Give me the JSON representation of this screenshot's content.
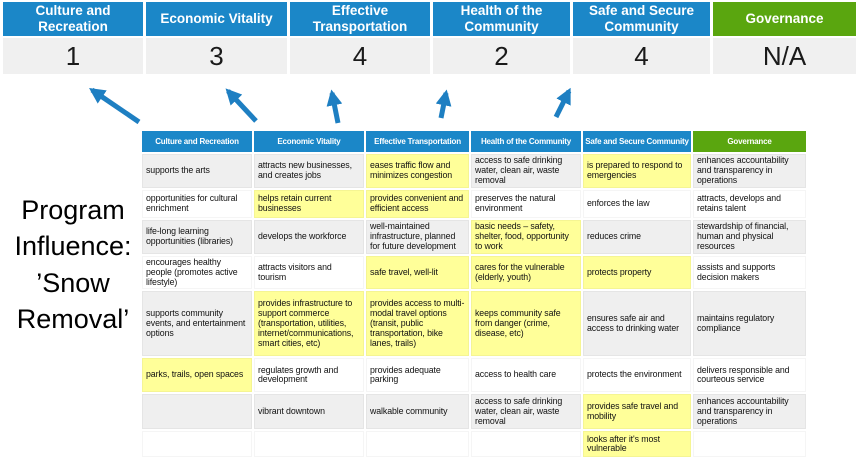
{
  "title": "Program Influence: ’Snow Removal’",
  "colors": {
    "blue": "#1B87C8",
    "green": "#5AA60F",
    "yellow": "#FFFF99",
    "band": "#EFEFEF",
    "score_bg": "#F0F0F0",
    "arrow": "#1E7FC2"
  },
  "summary": {
    "items": [
      {
        "label": "Culture and Recreation",
        "score": "1",
        "theme": "blue"
      },
      {
        "label": "Economic Vitality",
        "score": "3",
        "theme": "blue"
      },
      {
        "label": "Effective Transportation",
        "score": "4",
        "theme": "blue"
      },
      {
        "label": "Health of the Community",
        "score": "2",
        "theme": "blue"
      },
      {
        "label": "Safe and Secure Community",
        "score": "4",
        "theme": "blue"
      },
      {
        "label": "Governance",
        "score": "N/A",
        "theme": "green"
      }
    ]
  },
  "matrix": {
    "headers": [
      {
        "label": "Culture and Recreation",
        "theme": "blue"
      },
      {
        "label": "Economic Vitality",
        "theme": "blue"
      },
      {
        "label": "Effective Transportation",
        "theme": "blue"
      },
      {
        "label": "Health of the Community",
        "theme": "blue"
      },
      {
        "label": "Safe and Secure Community",
        "theme": "blue"
      },
      {
        "label": "Governance",
        "theme": "green"
      }
    ],
    "rows": [
      {
        "cells": [
          {
            "text": "supports the arts",
            "highlight": false
          },
          {
            "text": "attracts new businesses, and creates jobs",
            "highlight": false
          },
          {
            "text": "eases traffic flow and minimizes congestion",
            "highlight": true
          },
          {
            "text": "access to safe drinking water, clean air, waste removal",
            "highlight": false
          },
          {
            "text": "is prepared to respond to emergencies",
            "highlight": true
          },
          {
            "text": "enhances accountability and transparency in operations",
            "highlight": false
          }
        ]
      },
      {
        "cells": [
          {
            "text": "opportunities for cultural enrichment",
            "highlight": false
          },
          {
            "text": "helps retain current businesses",
            "highlight": true
          },
          {
            "text": "provides convenient and efficient access",
            "highlight": true
          },
          {
            "text": "preserves the natural environment",
            "highlight": false
          },
          {
            "text": "enforces the law",
            "highlight": false
          },
          {
            "text": "attracts, develops and retains talent",
            "highlight": false
          }
        ]
      },
      {
        "cells": [
          {
            "text": "life-long learning opportunities (libraries)",
            "highlight": false
          },
          {
            "text": "develops the workforce",
            "highlight": false
          },
          {
            "text": "well-maintained infrastructure, planned for future development",
            "highlight": false
          },
          {
            "text": "basic needs – safety, shelter, food, opportunity to work",
            "highlight": true
          },
          {
            "text": "reduces crime",
            "highlight": false
          },
          {
            "text": "stewardship of financial, human and physical resources",
            "highlight": false
          }
        ]
      },
      {
        "cells": [
          {
            "text": "encourages healthy people (promotes active lifestyle)",
            "highlight": false
          },
          {
            "text": "attracts visitors and tourism",
            "highlight": false
          },
          {
            "text": "safe travel, well-lit",
            "highlight": true
          },
          {
            "text": "cares for the vulnerable (elderly, youth)",
            "highlight": true
          },
          {
            "text": "protects property",
            "highlight": true
          },
          {
            "text": "assists and supports decision makers",
            "highlight": false
          }
        ]
      },
      {
        "cells": [
          {
            "text": "supports community events, and entertainment options",
            "highlight": false
          },
          {
            "text": "provides infrastructure to support commerce (transportation, utilities, internet/communications, smart cities, etc)",
            "highlight": true
          },
          {
            "text": "provides access to multi-modal travel options (transit, public transportation, bike lanes, trails)",
            "highlight": true
          },
          {
            "text": "keeps community safe from danger (crime, disease, etc)",
            "highlight": true
          },
          {
            "text": "ensures safe air and access to drinking water",
            "highlight": false
          },
          {
            "text": "maintains regulatory compliance",
            "highlight": false
          }
        ]
      },
      {
        "cells": [
          {
            "text": "parks, trails, open spaces",
            "highlight": true
          },
          {
            "text": "regulates growth and development",
            "highlight": false
          },
          {
            "text": "provides adequate parking",
            "highlight": false
          },
          {
            "text": "access to health care",
            "highlight": false
          },
          {
            "text": "protects the environment",
            "highlight": false
          },
          {
            "text": "delivers responsible and courteous service",
            "highlight": false
          }
        ]
      },
      {
        "cells": [
          {
            "text": "",
            "highlight": false
          },
          {
            "text": "vibrant downtown",
            "highlight": false
          },
          {
            "text": "walkable community",
            "highlight": false
          },
          {
            "text": "access to safe drinking water, clean air, waste removal",
            "highlight": false
          },
          {
            "text": "provides safe travel and mobility",
            "highlight": true
          },
          {
            "text": "enhances accountability and transparency in operations",
            "highlight": false
          }
        ]
      },
      {
        "cells": [
          {
            "text": "",
            "highlight": false
          },
          {
            "text": "",
            "highlight": false
          },
          {
            "text": "",
            "highlight": false
          },
          {
            "text": "",
            "highlight": false
          },
          {
            "text": "looks after it's most vulnerable",
            "highlight": true
          },
          {
            "text": "",
            "highlight": false
          }
        ]
      }
    ]
  }
}
